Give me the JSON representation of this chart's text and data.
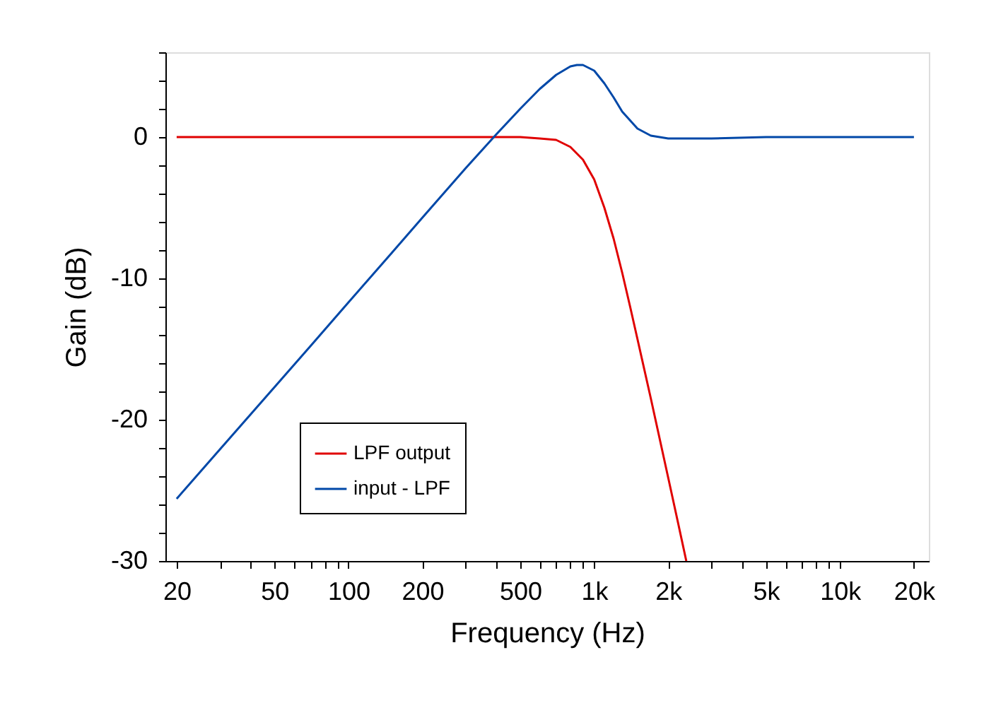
{
  "chart_data": {
    "type": "line",
    "xlabel": "Frequency (Hz)",
    "ylabel": "Gain (dB)",
    "log": "x",
    "xlim": [
      18,
      23000
    ],
    "ylim": [
      -30,
      6
    ],
    "xticks": [
      20,
      {
        "value": 30,
        "label": null
      },
      {
        "value": 40,
        "label": null
      },
      50,
      {
        "value": 60,
        "label": null
      },
      {
        "value": 70,
        "label": null
      },
      {
        "value": 80,
        "label": null
      },
      {
        "value": 90,
        "label": null
      },
      100,
      200,
      {
        "value": 300,
        "label": null
      },
      {
        "value": 400,
        "label": null
      },
      500,
      {
        "value": 600,
        "label": null
      },
      {
        "value": 700,
        "label": null
      },
      {
        "value": 800,
        "label": null
      },
      {
        "value": 900,
        "label": null
      },
      {
        "value": 1000,
        "label": "1k"
      },
      {
        "value": 2000,
        "label": "2k"
      },
      {
        "value": 3000,
        "label": null
      },
      {
        "value": 4000,
        "label": null
      },
      {
        "value": 5000,
        "label": "5k"
      },
      {
        "value": 6000,
        "label": null
      },
      {
        "value": 7000,
        "label": null
      },
      {
        "value": 8000,
        "label": null
      },
      {
        "value": 9000,
        "label": null
      },
      {
        "value": 10000,
        "label": "10k"
      },
      {
        "value": 20000,
        "label": "20k"
      }
    ],
    "yticks": [
      -30,
      {
        "value": -28,
        "label": null
      },
      {
        "value": -26,
        "label": null
      },
      {
        "value": -24,
        "label": null
      },
      {
        "value": -22,
        "label": null
      },
      -20,
      {
        "value": -18,
        "label": null
      },
      {
        "value": -16,
        "label": null
      },
      {
        "value": -14,
        "label": null
      },
      {
        "value": -12,
        "label": null
      },
      -10,
      {
        "value": -8,
        "label": null
      },
      {
        "value": -6,
        "label": null
      },
      {
        "value": -4,
        "label": null
      },
      {
        "value": -2,
        "label": null
      },
      0,
      {
        "value": 2,
        "label": null
      },
      {
        "value": 4,
        "label": null
      },
      {
        "value": 6,
        "label": null
      }
    ],
    "grid": false,
    "legend": "bottom left",
    "line_style": "solid",
    "marker": "none",
    "series": [
      {
        "name": "LPF output",
        "color": "#e00000",
        "x": [
          20,
          100,
          200,
          400,
          500,
          600,
          700,
          800,
          900,
          1000,
          1100,
          1200,
          1300,
          1400,
          1500,
          1700,
          2000,
          2200,
          2370
        ],
        "values": [
          0,
          0,
          0,
          0,
          0,
          -0.1,
          -0.2,
          -0.7,
          -1.6,
          -3.0,
          -5.0,
          -7.2,
          -9.6,
          -12.0,
          -14.3,
          -18.5,
          -24.1,
          -27.4,
          -30
        ]
      },
      {
        "name": "input - LPF",
        "color": "#0048a8",
        "x": [
          20,
          30,
          50,
          70,
          100,
          150,
          200,
          300,
          400,
          500,
          600,
          700,
          800,
          850,
          900,
          1000,
          1100,
          1200,
          1300,
          1500,
          1700,
          2000,
          2500,
          3000,
          5000,
          10000,
          20000
        ],
        "values": [
          -25.6,
          -22.1,
          -17.7,
          -14.8,
          -11.7,
          -8.2,
          -5.7,
          -2.2,
          0.2,
          2.0,
          3.4,
          4.4,
          5.0,
          5.1,
          5.1,
          4.7,
          3.8,
          2.8,
          1.8,
          0.6,
          0.1,
          -0.1,
          -0.1,
          -0.1,
          0,
          0,
          0
        ]
      }
    ]
  }
}
